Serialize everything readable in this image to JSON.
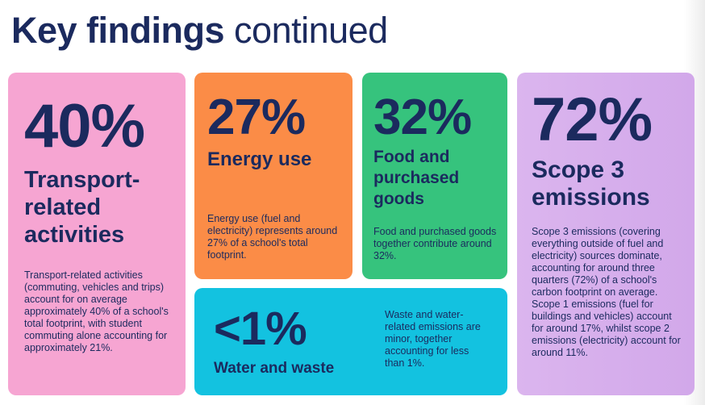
{
  "title": {
    "bold": "Key findings",
    "light": "continued"
  },
  "cards": {
    "transport": {
      "stat": "40%",
      "heading": "Transport-related activities",
      "body": "Transport-related activities (commuting, vehicles and trips) account for on average approximately 40% of a school's total footprint, with student commuting alone accounting for approximately 21%.",
      "color": "#f6a5d2"
    },
    "energy": {
      "stat": "27%",
      "heading": "Energy use",
      "body": "Energy use (fuel and electricity) represents around 27% of a school's total footprint.",
      "color": "#fb8c47"
    },
    "food": {
      "stat": "32%",
      "heading": "Food and purchased goods",
      "body": "Food and purchased goods together contribute around 32%.",
      "color": "#36c37d"
    },
    "scope": {
      "stat": "72%",
      "heading": "Scope 3 emissions",
      "body": "Scope 3 emissions (covering everything outside of fuel and electricity) sources dominate, accounting for around three quarters (72%) of a school's carbon footprint on average. Scope 1 emissions (fuel for buildings and vehicles) account for around 17%, whilst scope 2 emissions (electricity) account for around 11%.",
      "color": "#d2a8ea"
    },
    "water": {
      "stat": "<1%",
      "heading": "Water and waste",
      "body": "Waste and water-related emissions are minor, together accounting for less than 1%.",
      "color": "#13c2e0"
    }
  },
  "text_color": "#1b2a5e"
}
